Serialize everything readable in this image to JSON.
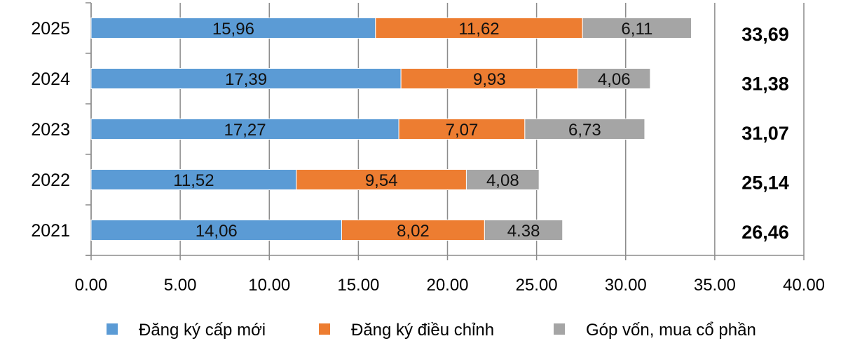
{
  "chart_data": {
    "type": "bar",
    "orientation": "horizontal",
    "stacked": true,
    "categories": [
      "2025",
      "2024",
      "2023",
      "2022",
      "2021"
    ],
    "series": [
      {
        "name": "Đăng ký cấp mới",
        "color": "#5B9BD5",
        "values": [
          15.96,
          17.39,
          17.27,
          11.52,
          14.06
        ],
        "labels": [
          "15,96",
          "17,39",
          "17,27",
          "11,52",
          "14,06"
        ]
      },
      {
        "name": "Đăng ký điều chỉnh",
        "color": "#ED7D31",
        "values": [
          11.62,
          9.93,
          7.07,
          9.54,
          8.02
        ],
        "labels": [
          "11,62",
          "9,93",
          "7,07",
          "9,54",
          "8,02"
        ]
      },
      {
        "name": "Góp vốn, mua cổ phần",
        "color": "#A5A5A5",
        "values": [
          6.11,
          4.06,
          6.73,
          4.08,
          4.38
        ],
        "labels": [
          "6,11",
          "4,06",
          "6,73",
          "4,08",
          "4.38"
        ]
      }
    ],
    "totals": [
      "33,69",
      "31,38",
      "31,07",
      "25,14",
      "26,46"
    ],
    "xlim": [
      0,
      40
    ],
    "xticks": [
      "0.00",
      "5.00",
      "10.00",
      "15.00",
      "20.00",
      "25.00",
      "30.00",
      "35.00",
      "40.00"
    ],
    "grid": true,
    "legend": "bottom"
  }
}
